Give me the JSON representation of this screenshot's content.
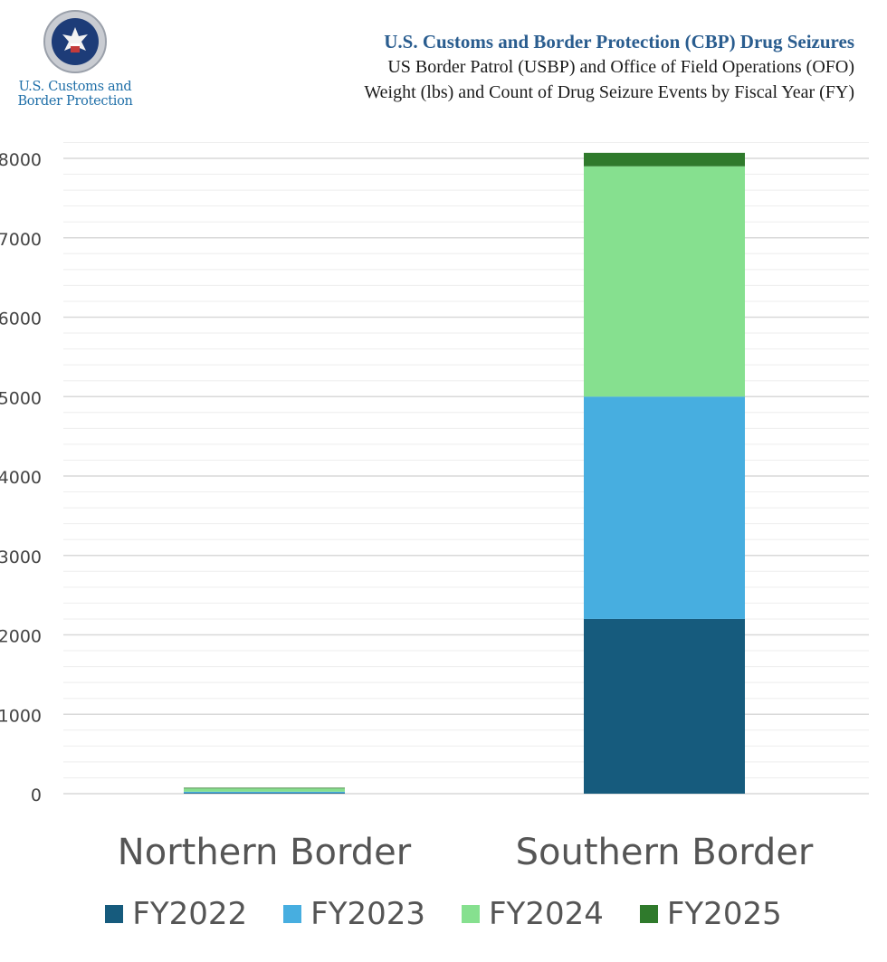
{
  "header": {
    "agency_name_line1": "U.S. Customs and",
    "agency_name_line2": "Border Protection",
    "title": "U.S. Customs and Border Protection (CBP) Drug Seizures",
    "subtitle1": "US Border Patrol (USBP) and Office of Field Operations (OFO)",
    "subtitle2": "Weight (lbs) and Count of Drug Seizure Events by Fiscal Year (FY)"
  },
  "colors": {
    "FY2022": "#165b7d",
    "FY2023": "#47aee0",
    "FY2024": "#86e08f",
    "FY2025": "#2f7a2c",
    "grid": "#d9d9d9",
    "minor_grid": "#eeeeee"
  },
  "chart_data": {
    "type": "bar",
    "stacked": true,
    "title": "U.S. Customs and Border Protection (CBP) Drug Seizures",
    "categories": [
      "Northern Border",
      "Southern Border"
    ],
    "series": [
      {
        "name": "FY2022",
        "values": [
          10,
          2200
        ]
      },
      {
        "name": "FY2023",
        "values": [
          15,
          2800
        ]
      },
      {
        "name": "FY2024",
        "values": [
          40,
          2900
        ]
      },
      {
        "name": "FY2025",
        "values": [
          10,
          170
        ]
      }
    ],
    "yticks": [
      "0",
      "1000",
      "2000",
      "3000",
      "4000",
      "5000",
      "6000",
      "7000",
      "8000"
    ],
    "ylim": [
      0,
      8400
    ],
    "grid": true,
    "legend": "bottom"
  }
}
